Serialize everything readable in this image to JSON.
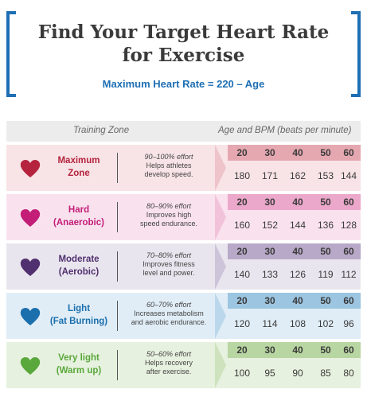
{
  "header": {
    "title_line1": "Find Your Target Heart Rate",
    "title_line2": "for Exercise",
    "subtitle": "Maximum Heart Rate = 220 – Age",
    "accent": "#1e6fb3"
  },
  "table": {
    "col_zone": "Training Zone",
    "col_age": "Age and BPM (beats per minute)",
    "ages": [
      "20",
      "30",
      "40",
      "50",
      "60"
    ],
    "zones": [
      {
        "name_line1": "Maximum",
        "name_line2": "Zone",
        "effort": "90–100% effort",
        "desc_line1": "Helps athletes",
        "desc_line2": "develop speed.",
        "bpm": [
          "180",
          "171",
          "162",
          "153",
          "144"
        ],
        "color": "#b5233e",
        "bg": "#f8e4e6",
        "band": "#e5a8b0"
      },
      {
        "name_line1": "Hard",
        "name_line2": "(Anaerobic)",
        "effort": "80–90% effort",
        "desc_line1": "Improves high",
        "desc_line2": "speed endurance.",
        "bpm": [
          "160",
          "152",
          "144",
          "136",
          "128"
        ],
        "color": "#c31d78",
        "bg": "#f9e2ee",
        "band": "#eba8ca"
      },
      {
        "name_line1": "Moderate",
        "name_line2": "(Aerobic)",
        "effort": "70–80% effort",
        "desc_line1": "Improves fitness",
        "desc_line2": "level and power.",
        "bpm": [
          "140",
          "133",
          "126",
          "119",
          "112"
        ],
        "color": "#51306f",
        "bg": "#e9e5ee",
        "band": "#b8a9c8"
      },
      {
        "name_line1": "Light",
        "name_line2": "(Fat Burning)",
        "effort": "60–70% effort",
        "desc_line1": "Increases metabolism",
        "desc_line2": "and aerobic endurance.",
        "bpm": [
          "120",
          "114",
          "108",
          "102",
          "96"
        ],
        "color": "#1b6fad",
        "bg": "#e0edf6",
        "band": "#9cc5e1"
      },
      {
        "name_line1": "Very light",
        "name_line2": "(Warm up)",
        "effort": "50–60% effort",
        "desc_line1": "Helps recovery",
        "desc_line2": "after exercise.",
        "bpm": [
          "100",
          "95",
          "90",
          "85",
          "80"
        ],
        "color": "#5aa83c",
        "bg": "#e7f1df",
        "band": "#b8d6a1"
      }
    ]
  }
}
